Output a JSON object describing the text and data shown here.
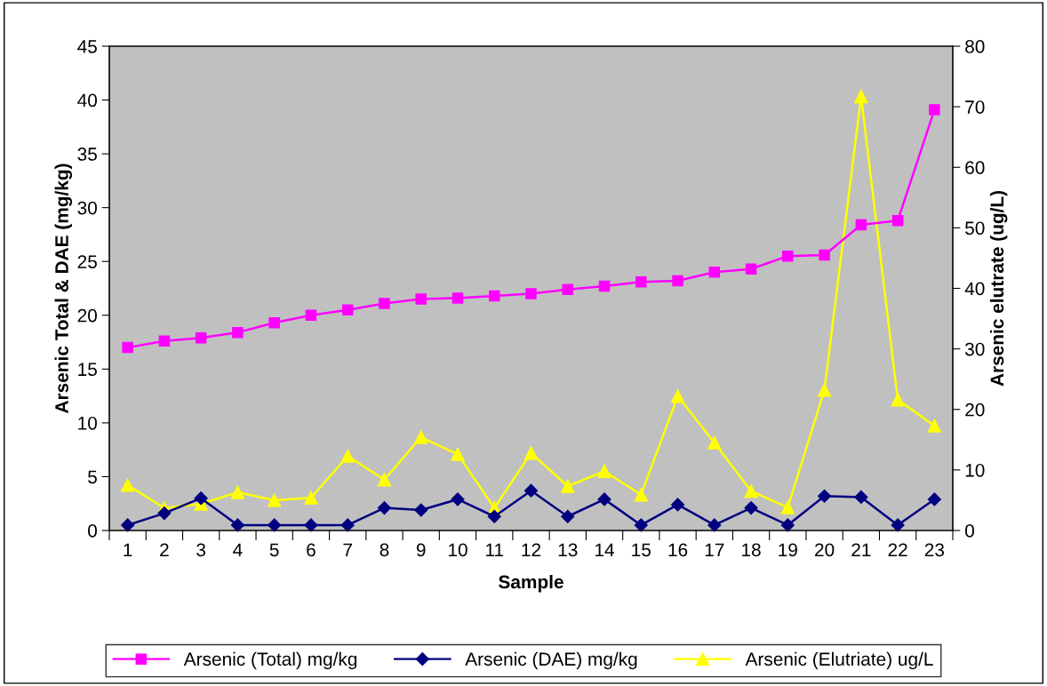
{
  "chart_data": {
    "type": "line",
    "xlabel": "Sample",
    "ylabel": "Arsenic Total & DAE (mg/kg)",
    "y2label": "Arsenic elutrate (ug/L)",
    "categories": [
      "1",
      "2",
      "3",
      "4",
      "5",
      "6",
      "7",
      "8",
      "9",
      "10",
      "11",
      "12",
      "13",
      "14",
      "15",
      "16",
      "17",
      "18",
      "19",
      "20",
      "21",
      "22",
      "23"
    ],
    "series": [
      {
        "name": "Arsenic (Total) mg/kg",
        "color": "#ff00ff",
        "marker": "square",
        "values": [
          17.0,
          17.6,
          17.9,
          18.4,
          19.3,
          20.0,
          20.5,
          21.1,
          21.5,
          21.6,
          21.8,
          22.0,
          22.4,
          22.7,
          23.1,
          23.2,
          24.0,
          24.3,
          25.5,
          25.6,
          28.4,
          28.8,
          39.1
        ]
      },
      {
        "name": "Arsenic (DAE) mg/kg",
        "color": "#000080",
        "marker": "diamond",
        "values": [
          0.5,
          1.6,
          3.0,
          0.5,
          0.5,
          0.5,
          0.5,
          2.1,
          1.9,
          2.9,
          1.3,
          3.7,
          1.3,
          2.9,
          0.5,
          2.4,
          0.5,
          2.1,
          0.5,
          3.2,
          3.1,
          0.5,
          2.9
        ]
      },
      {
        "name": "Arsenic (Elutriate) ug/L",
        "color": "#ffff00",
        "marker": "triangle",
        "axis": "y2",
        "values": [
          7.5,
          3.7,
          4.4,
          6.3,
          5.0,
          5.4,
          12.3,
          8.4,
          15.4,
          12.6,
          3.7,
          12.8,
          7.3,
          9.8,
          5.9,
          22.2,
          14.5,
          6.5,
          3.8,
          23.2,
          71.7,
          21.6,
          17.3
        ]
      }
    ],
    "ylim": [
      0,
      45
    ],
    "yticks": [
      0,
      5,
      10,
      15,
      20,
      25,
      30,
      35,
      40,
      45
    ],
    "y2lim": [
      0,
      80
    ],
    "y2ticks": [
      0,
      10,
      20,
      30,
      40,
      50,
      60,
      70,
      80
    ],
    "grid": false,
    "legend": "bottom"
  }
}
